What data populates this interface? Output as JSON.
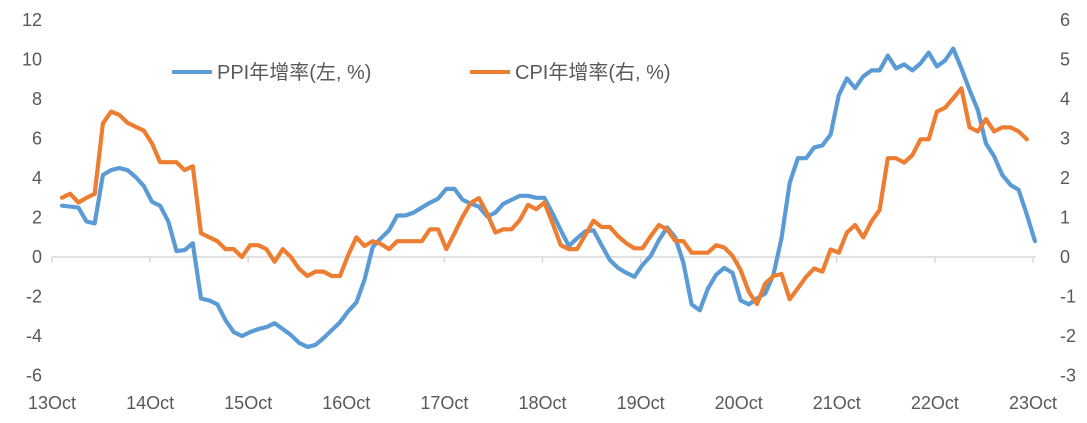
{
  "chart_data": {
    "type": "line",
    "title": "",
    "x_tick_labels": [
      "13Oct",
      "14Oct",
      "15Oct",
      "16Oct",
      "17Oct",
      "18Oct",
      "19Oct",
      "20Oct",
      "21Oct",
      "22Oct",
      "23Oct"
    ],
    "x": [
      "2013-10",
      "2013-11",
      "2013-12",
      "2014-01",
      "2014-02",
      "2014-03",
      "2014-04",
      "2014-05",
      "2014-06",
      "2014-07",
      "2014-08",
      "2014-09",
      "2014-10",
      "2014-11",
      "2014-12",
      "2015-01",
      "2015-02",
      "2015-03",
      "2015-04",
      "2015-05",
      "2015-06",
      "2015-07",
      "2015-08",
      "2015-09",
      "2015-10",
      "2015-11",
      "2015-12",
      "2016-01",
      "2016-02",
      "2016-03",
      "2016-04",
      "2016-05",
      "2016-06",
      "2016-07",
      "2016-08",
      "2016-09",
      "2016-10",
      "2016-11",
      "2016-12",
      "2017-01",
      "2017-02",
      "2017-03",
      "2017-04",
      "2017-05",
      "2017-06",
      "2017-07",
      "2017-08",
      "2017-09",
      "2017-10",
      "2017-11",
      "2017-12",
      "2018-01",
      "2018-02",
      "2018-03",
      "2018-04",
      "2018-05",
      "2018-06",
      "2018-07",
      "2018-08",
      "2018-09",
      "2018-10",
      "2018-11",
      "2018-12",
      "2019-01",
      "2019-02",
      "2019-03",
      "2019-04",
      "2019-05",
      "2019-06",
      "2019-07",
      "2019-08",
      "2019-09",
      "2019-10",
      "2019-11",
      "2019-12",
      "2020-01",
      "2020-02",
      "2020-03",
      "2020-04",
      "2020-05",
      "2020-06",
      "2020-07",
      "2020-08",
      "2020-09",
      "2020-10",
      "2020-11",
      "2020-12",
      "2021-01",
      "2021-02",
      "2021-03",
      "2021-04",
      "2021-05",
      "2021-06",
      "2021-07",
      "2021-08",
      "2021-09",
      "2021-10",
      "2021-11",
      "2021-12",
      "2022-01",
      "2022-02",
      "2022-03",
      "2022-04",
      "2022-05",
      "2022-06",
      "2022-07",
      "2022-08",
      "2022-09",
      "2022-10",
      "2022-11",
      "2022-12",
      "2023-01",
      "2023-02",
      "2023-03",
      "2023-04",
      "2023-05",
      "2023-06",
      "2023-07",
      "2023-08",
      "2023-09"
    ],
    "y_left": {
      "range": [
        -6,
        12
      ],
      "ticks": [
        -6,
        -4,
        -2,
        0,
        2,
        4,
        6,
        8,
        10,
        12
      ]
    },
    "y_right": {
      "range": [
        -3,
        6
      ],
      "ticks": [
        -3,
        -2,
        -1,
        0,
        1,
        2,
        3,
        4,
        5,
        6
      ]
    },
    "grid": false,
    "legend_placement": "top-left",
    "series": [
      {
        "name": "PPI年增率(左, %)",
        "axis": "left",
        "color": "#5b9bd5",
        "values": [
          2.6,
          2.55,
          2.5,
          1.8,
          1.7,
          4.15,
          4.4,
          4.5,
          4.4,
          4.05,
          3.6,
          2.8,
          2.6,
          1.8,
          0.3,
          0.35,
          0.7,
          -2.1,
          -2.2,
          -2.4,
          -3.2,
          -3.8,
          -4.0,
          -3.8,
          -3.65,
          -3.55,
          -3.35,
          -3.65,
          -3.95,
          -4.35,
          -4.55,
          -4.45,
          -4.1,
          -3.7,
          -3.3,
          -2.75,
          -2.3,
          -1.15,
          0.5,
          0.95,
          1.35,
          2.1,
          2.1,
          2.25,
          2.5,
          2.75,
          2.95,
          3.45,
          3.45,
          2.9,
          2.7,
          2.55,
          2.05,
          2.25,
          2.7,
          2.9,
          3.1,
          3.1,
          3.0,
          3.0,
          2.2,
          1.35,
          0.55,
          0.95,
          1.3,
          1.35,
          0.6,
          -0.15,
          -0.55,
          -0.8,
          -1.0,
          -0.4,
          0.05,
          0.85,
          1.5,
          1.0,
          -0.3,
          -2.4,
          -2.7,
          -1.6,
          -0.9,
          -0.55,
          -0.8,
          -2.2,
          -2.4,
          -2.1,
          -1.85,
          -0.9,
          0.95,
          3.75,
          5.0,
          5.0,
          5.55,
          5.65,
          6.2,
          8.2,
          9.05,
          8.55,
          9.15,
          9.45,
          9.45,
          10.2,
          9.55,
          9.75,
          9.45,
          9.8,
          10.35,
          9.65,
          9.95,
          10.55,
          9.55,
          8.45,
          7.45,
          5.75,
          5.1,
          4.15,
          3.65,
          3.4,
          2.15,
          0.8
        ]
      },
      {
        "name": "CPI年增率(右, %)",
        "axis": "right",
        "color": "#ed7d31",
        "values": [
          1.5,
          1.6,
          1.38,
          1.5,
          1.6,
          3.38,
          3.68,
          3.6,
          3.4,
          3.3,
          3.2,
          2.88,
          2.4,
          2.4,
          2.4,
          2.2,
          2.3,
          0.6,
          0.5,
          0.4,
          0.2,
          0.2,
          0.0,
          0.3,
          0.3,
          0.2,
          -0.12,
          0.2,
          0.0,
          -0.3,
          -0.48,
          -0.37,
          -0.37,
          -0.48,
          -0.48,
          0.05,
          0.5,
          0.28,
          0.4,
          0.33,
          0.2,
          0.4,
          0.4,
          0.4,
          0.4,
          0.7,
          0.7,
          0.2,
          0.6,
          1.02,
          1.37,
          1.49,
          1.1,
          0.62,
          0.7,
          0.7,
          0.94,
          1.32,
          1.21,
          1.38,
          0.85,
          0.3,
          0.2,
          0.2,
          0.56,
          0.92,
          0.76,
          0.76,
          0.53,
          0.35,
          0.22,
          0.22,
          0.53,
          0.81,
          0.7,
          0.41,
          0.4,
          0.11,
          0.11,
          0.11,
          0.3,
          0.24,
          0.03,
          -0.33,
          -0.88,
          -1.19,
          -0.67,
          -0.48,
          -0.43,
          -1.07,
          -0.79,
          -0.5,
          -0.29,
          -0.37,
          0.19,
          0.11,
          0.62,
          0.81,
          0.5,
          0.9,
          1.19,
          2.5,
          2.5,
          2.39,
          2.58,
          2.98,
          2.98,
          3.68,
          3.78,
          4.02,
          4.27,
          3.28,
          3.18,
          3.49,
          3.18,
          3.28,
          3.28,
          3.18,
          2.98,
          null
        ]
      }
    ]
  }
}
